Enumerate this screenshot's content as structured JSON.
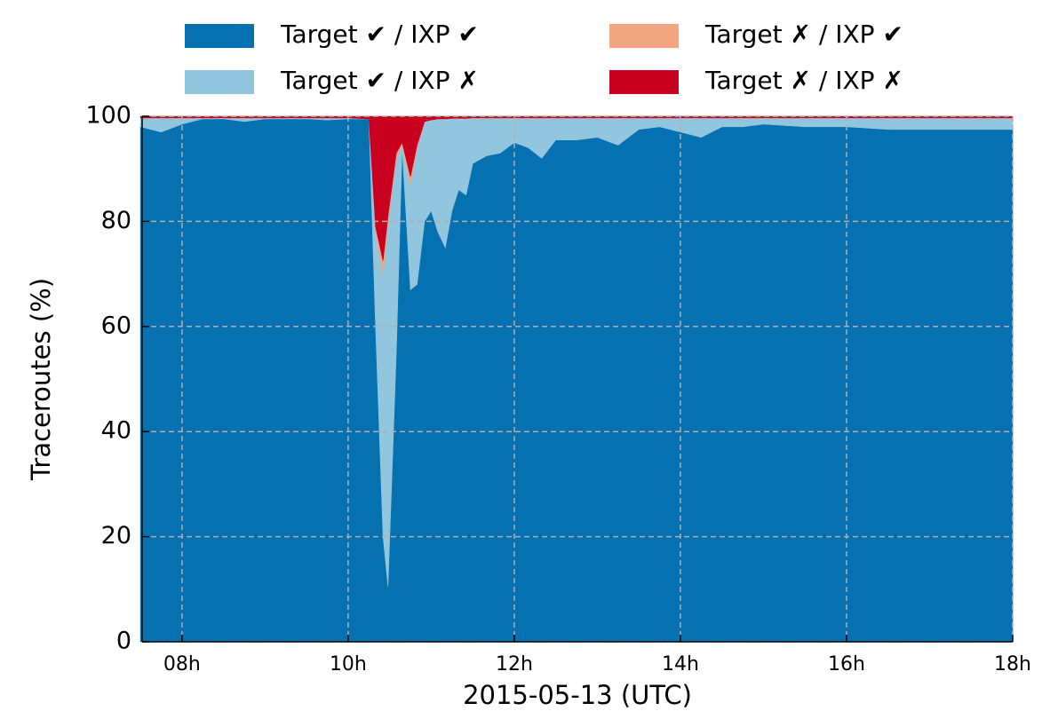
{
  "chart_data": {
    "type": "stacked_area",
    "xlabel": "2015-05-13 (UTC)",
    "ylabel": "Traceroutes (%)",
    "x": [
      7.5,
      7.75,
      8,
      8.25,
      8.5,
      8.75,
      9,
      9.25,
      9.5,
      9.75,
      10,
      10.25,
      10.33,
      10.42,
      10.48,
      10.58,
      10.65,
      10.75,
      10.83,
      10.92,
      11,
      11.08,
      11.17,
      11.25,
      11.33,
      11.42,
      11.5,
      11.67,
      11.83,
      12,
      12.17,
      12.33,
      12.5,
      12.75,
      13,
      13.25,
      13.5,
      13.75,
      14,
      14.25,
      14.5,
      14.75,
      15,
      15.5,
      16,
      16.5,
      17,
      17.5,
      18
    ],
    "series": [
      {
        "name": "Target ✔ / IXP ✔",
        "color": "#0571b0",
        "values": [
          98,
          97,
          98.5,
          99.5,
          99.5,
          99,
          99.5,
          99.5,
          99.5,
          99.3,
          99.5,
          99.5,
          60,
          20,
          10.5,
          55,
          94,
          67,
          68,
          80,
          82,
          78,
          75,
          82,
          86,
          85,
          91,
          92.5,
          93,
          95,
          94,
          92,
          95.5,
          95.5,
          96,
          94.5,
          97.5,
          98,
          97,
          96,
          98,
          98,
          98.5,
          98,
          98,
          97.5,
          97.5,
          97.5,
          97.5
        ]
      },
      {
        "name": "Target ✔ / IXP ✗",
        "color": "#92c5de",
        "values": [
          1.7,
          2.7,
          1.2,
          0.2,
          0.2,
          0.7,
          0.2,
          0.2,
          0.2,
          0.4,
          0.2,
          0,
          18,
          50,
          69.5,
          37,
          0.5,
          20,
          26,
          19,
          17.3,
          21.5,
          24.5,
          17.6,
          13.6,
          14.6,
          8.7,
          7.2,
          6.7,
          4.7,
          5.7,
          7.7,
          4.2,
          4.2,
          3.7,
          5.2,
          2.2,
          1.7,
          2.7,
          3.7,
          1.7,
          1.7,
          1.2,
          1.7,
          1.7,
          2.2,
          2.2,
          2.2,
          2.2
        ]
      },
      {
        "name": "Target ✗ / IXP ✔",
        "color": "#f4a582",
        "values": [
          0,
          0,
          0,
          0,
          0,
          0,
          0,
          0,
          0,
          0,
          0,
          0,
          1,
          2.5,
          1,
          1,
          0.5,
          1.5,
          0.5,
          0,
          0,
          0,
          0,
          0,
          0,
          0,
          0,
          0,
          0,
          0,
          0,
          0,
          0,
          0,
          0,
          0,
          0,
          0,
          0,
          0,
          0,
          0,
          0,
          0,
          0,
          0,
          0,
          0,
          0
        ]
      },
      {
        "name": "Target ✗ / IXP ✗",
        "color": "#ca0020",
        "values": [
          0.3,
          0.3,
          0.3,
          0.3,
          0.3,
          0.3,
          0.3,
          0.3,
          0.3,
          0.3,
          0.3,
          0.5,
          21,
          27.5,
          19,
          7,
          5,
          11.5,
          5.5,
          1,
          0.7,
          0.5,
          0.5,
          0.4,
          0.4,
          0.4,
          0.3,
          0.3,
          0.3,
          0.3,
          0.3,
          0.3,
          0.3,
          0.3,
          0.3,
          0.3,
          0.3,
          0.3,
          0.3,
          0.3,
          0.3,
          0.3,
          0.3,
          0.3,
          0.3,
          0.3,
          0.3,
          0.3,
          0.3
        ]
      }
    ],
    "xlim": [
      7.52,
      18
    ],
    "xticks": [
      {
        "value": 8,
        "label": "08h"
      },
      {
        "value": 10,
        "label": "10h"
      },
      {
        "value": 12,
        "label": "12h"
      },
      {
        "value": 14,
        "label": "14h"
      },
      {
        "value": 16,
        "label": "16h"
      },
      {
        "value": 18,
        "label": "18h"
      }
    ],
    "ylim": [
      0,
      100
    ],
    "yticks": [
      0,
      20,
      40,
      60,
      80,
      100
    ],
    "grid": true,
    "legend": "top"
  }
}
